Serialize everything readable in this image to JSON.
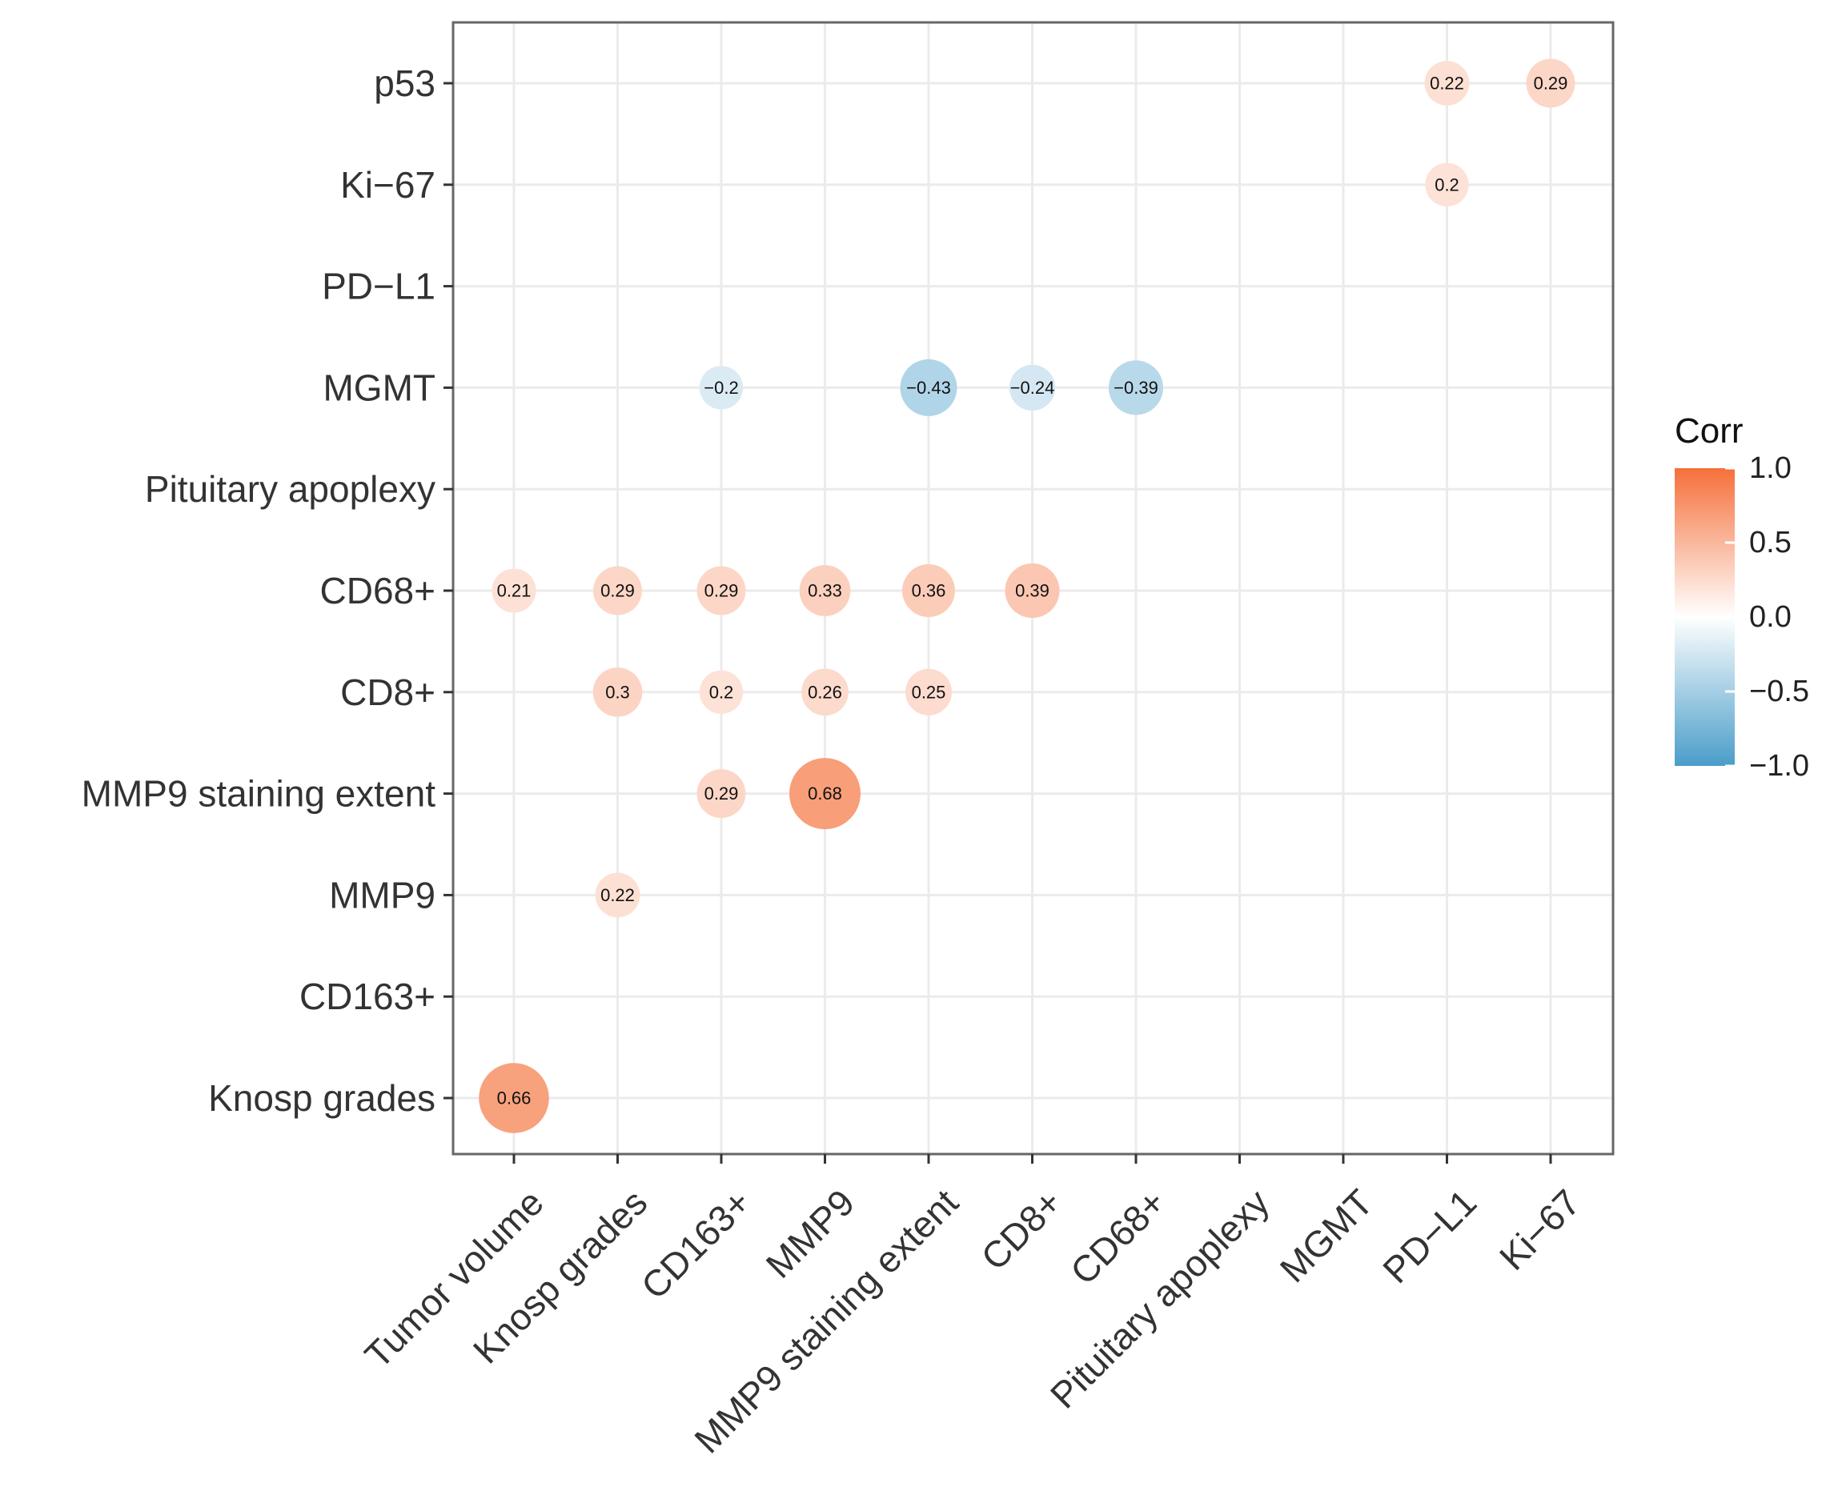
{
  "chart_data": {
    "type": "heatmap",
    "subtype": "correlation-circles-lower-triangle",
    "x_categories": [
      "Tumor volume",
      "Knosp grades",
      "CD163+",
      "MMP9",
      "MMP9 staining extent",
      "CD8+",
      "CD68+",
      "Pituitary apoplexy",
      "MGMT",
      "PD−L1",
      "Ki−67"
    ],
    "y_categories": [
      "p53",
      "Ki−67",
      "PD−L1",
      "MGMT",
      "Pituitary apoplexy",
      "CD68+",
      "CD8+",
      "MMP9 staining extent",
      "MMP9",
      "CD163+",
      "Knosp grades"
    ],
    "cells": [
      {
        "x": "PD−L1",
        "y": "p53",
        "value": 0.22,
        "label": "0.22"
      },
      {
        "x": "Ki−67",
        "y": "p53",
        "value": 0.29,
        "label": "0.29"
      },
      {
        "x": "PD−L1",
        "y": "Ki−67",
        "value": 0.2,
        "label": "0.2"
      },
      {
        "x": "CD163+",
        "y": "MGMT",
        "value": -0.2,
        "label": "−0.2"
      },
      {
        "x": "MMP9 staining extent",
        "y": "MGMT",
        "value": -0.43,
        "label": "−0.43"
      },
      {
        "x": "CD8+",
        "y": "MGMT",
        "value": -0.24,
        "label": "−0.24"
      },
      {
        "x": "CD68+",
        "y": "MGMT",
        "value": -0.39,
        "label": "−0.39"
      },
      {
        "x": "Tumor volume",
        "y": "CD68+",
        "value": 0.21,
        "label": "0.21"
      },
      {
        "x": "Knosp grades",
        "y": "CD68+",
        "value": 0.29,
        "label": "0.29"
      },
      {
        "x": "CD163+",
        "y": "CD68+",
        "value": 0.29,
        "label": "0.29"
      },
      {
        "x": "MMP9",
        "y": "CD68+",
        "value": 0.33,
        "label": "0.33"
      },
      {
        "x": "MMP9 staining extent",
        "y": "CD68+",
        "value": 0.36,
        "label": "0.36"
      },
      {
        "x": "CD8+",
        "y": "CD68+",
        "value": 0.39,
        "label": "0.39"
      },
      {
        "x": "Knosp grades",
        "y": "CD8+",
        "value": 0.3,
        "label": "0.3"
      },
      {
        "x": "CD163+",
        "y": "CD8+",
        "value": 0.2,
        "label": "0.2"
      },
      {
        "x": "MMP9",
        "y": "CD8+",
        "value": 0.26,
        "label": "0.26"
      },
      {
        "x": "MMP9 staining extent",
        "y": "CD8+",
        "value": 0.25,
        "label": "0.25"
      },
      {
        "x": "CD163+",
        "y": "MMP9 staining extent",
        "value": 0.29,
        "label": "0.29"
      },
      {
        "x": "MMP9",
        "y": "MMP9 staining extent",
        "value": 0.68,
        "label": "0.68"
      },
      {
        "x": "Knosp grades",
        "y": "MMP9",
        "value": 0.22,
        "label": "0.22"
      },
      {
        "x": "Tumor volume",
        "y": "Knosp grades",
        "value": 0.66,
        "label": "0.66"
      }
    ],
    "legend": {
      "title": "Corr",
      "ticks": [
        "1.0",
        "0.5",
        "0.0",
        "−0.5",
        "−1.0"
      ],
      "tick_values": [
        1.0,
        0.5,
        0.0,
        -0.5,
        -1.0
      ],
      "range": [
        -1.0,
        1.0
      ],
      "placement": "right"
    },
    "colors": {
      "high": "#F5703A",
      "mid": "#FFFFFF",
      "low": "#4A9DC9",
      "grid": "#EBEBEB",
      "panel_border": "#666666"
    },
    "grid": true
  }
}
